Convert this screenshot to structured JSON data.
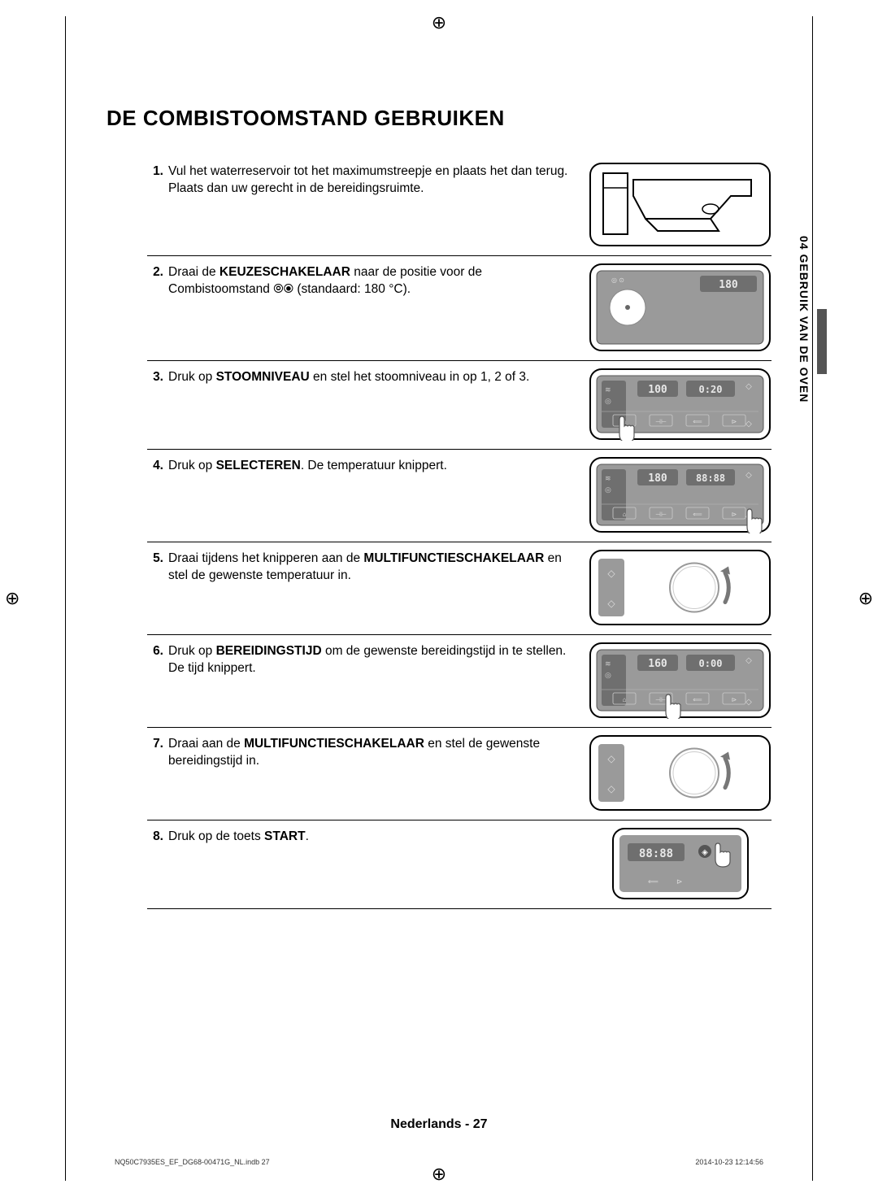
{
  "title": "DE COMBISTOOMSTAND GEBRUIKEN",
  "sidetab": "04  GEBRUIK VAN DE OVEN",
  "footer": "Nederlands - 27",
  "meta": {
    "left": "NQ50C7935ES_EF_DG68-00471G_NL.indb   27",
    "right": "2014-10-23   12:14:56"
  },
  "colors": {
    "panel_bg": "#9a9a9a",
    "panel_stroke": "#555555",
    "display_bg": "#6f6f6f",
    "display_text": "#e8e8e8",
    "screen_border": "#000000",
    "line": "#000000",
    "knob_fill": "#ffffff",
    "knob_stroke": "#888888",
    "arrow": "#777777",
    "hand": "#ffffff",
    "hand_stroke": "#555555"
  },
  "steps": [
    {
      "num": "1.",
      "html": "Vul het waterreservoir tot het maximumstreepje en plaats het dan terug. Plaats dan uw gerecht in de bereidingsruimte.",
      "img": "reservoir",
      "display": ""
    },
    {
      "num": "2.",
      "html": "Draai de <b>KEUZESCHAKELAAR</b> naar de positie voor de Combistoomstand ⦾⦿ (standaard: 180 °C).",
      "img": "panel_small",
      "display": "180"
    },
    {
      "num": "3.",
      "html": "Druk op <b>STOOMNIVEAU</b> en stel het stoomniveau in op 1, 2 of 3.",
      "img": "panel_touch_left",
      "display_left": "100",
      "display_right": "0:20"
    },
    {
      "num": "4.",
      "html": "Druk op <b>SELECTEREN</b>. De temperatuur knippert.",
      "img": "panel_touch_right",
      "display_left": "180",
      "display_right": "88:88"
    },
    {
      "num": "5.",
      "html": "Draai tijdens het knipperen aan de <b>MULTIFUNCTIESCHAKELAAR</b> en stel de gewenste temperatuur in.",
      "img": "knob",
      "display": ""
    },
    {
      "num": "6.",
      "html": "Druk op <b>BEREIDINGSTIJD</b> om de gewenste bereidingstijd in te stellen. De tijd knippert.",
      "img": "panel_touch_mid",
      "display_left": "160",
      "display_right": "0:00"
    },
    {
      "num": "7.",
      "html": "Draai aan de <b>MULTIFUNCTIESCHAKELAAR</b> en stel de gewenste bereidingstijd in.",
      "img": "knob",
      "display": ""
    },
    {
      "num": "8.",
      "html": "Druk op de toets <b>START</b>.",
      "img": "panel_start",
      "display": "88:88"
    }
  ]
}
